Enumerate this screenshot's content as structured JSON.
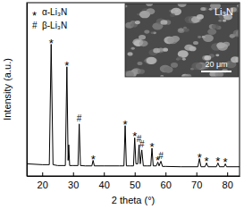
{
  "chart_data": {
    "type": "line",
    "x_label": "2 theta (°)",
    "y_label": "Intensity (a.u.)",
    "x": [
      15,
      20,
      22.3,
      22.9,
      23.5,
      25,
      27.5,
      28.0,
      28.4,
      28.6,
      28.9,
      30,
      31.6,
      32.0,
      32.4,
      34,
      36.1,
      36.5,
      36.9,
      40,
      45,
      46.5,
      46.9,
      47.3,
      48.5,
      49.6,
      50.0,
      50.4,
      51.0,
      51.4,
      51.8,
      52.3,
      52.8,
      54,
      55.2,
      55.6,
      56.0,
      57,
      57.5,
      57.9,
      58.5,
      59.0,
      60,
      65,
      70.5,
      71.0,
      71.5,
      72.8,
      73.3,
      73.8,
      76.5,
      77.0,
      77.5,
      79.0,
      79.4,
      79.8,
      84
    ],
    "series": [
      {
        "name": "Li₃N",
        "color": "#000000",
        "values": [
          7,
          6.5,
          6.5,
          76,
          6.5,
          6,
          6,
          63,
          9,
          18,
          6,
          6,
          6,
          30,
          6,
          5.8,
          5.8,
          9,
          5.8,
          5.8,
          5.8,
          5.8,
          29,
          5.8,
          5.8,
          5.8,
          22,
          7,
          7,
          18,
          7,
          15,
          5.8,
          5.8,
          5.8,
          16,
          5.8,
          5.8,
          8,
          5.8,
          8.5,
          5.5,
          5.5,
          5.3,
          5.3,
          10,
          5.3,
          5.3,
          7.5,
          5.3,
          5.3,
          7.5,
          5.3,
          5.3,
          7,
          5.3,
          5.3
        ]
      }
    ],
    "xlim": [
      15,
      84
    ],
    "xticks": [
      20,
      30,
      40,
      50,
      60,
      70,
      80
    ],
    "ylim": [
      0,
      100
    ],
    "yticks": [],
    "tick_labels": "x",
    "grid": false,
    "peak_markers": [
      {
        "symbol": "*",
        "name": "α-Li₃N"
      },
      {
        "symbol": "#",
        "name": "β-Li₃N"
      }
    ],
    "annotations": [
      {
        "x": 22.9,
        "text": "*"
      },
      {
        "x": 28.0,
        "text": "*"
      },
      {
        "x": 32.0,
        "text": "#"
      },
      {
        "x": 36.5,
        "text": "*"
      },
      {
        "x": 46.9,
        "text": "*"
      },
      {
        "x": 50.0,
        "text": "*"
      },
      {
        "x": 51.4,
        "text": "#"
      },
      {
        "x": 52.3,
        "text": "#"
      },
      {
        "x": 55.6,
        "text": "*"
      },
      {
        "x": 57.5,
        "text": "*"
      },
      {
        "x": 58.5,
        "text": "#"
      },
      {
        "x": 71.0,
        "text": "*"
      },
      {
        "x": 73.3,
        "text": "*"
      },
      {
        "x": 77.0,
        "text": "*"
      },
      {
        "x": 79.4,
        "text": "*"
      }
    ],
    "inset": {
      "label": "Li₃N",
      "scale_bar": "20 μm"
    }
  }
}
